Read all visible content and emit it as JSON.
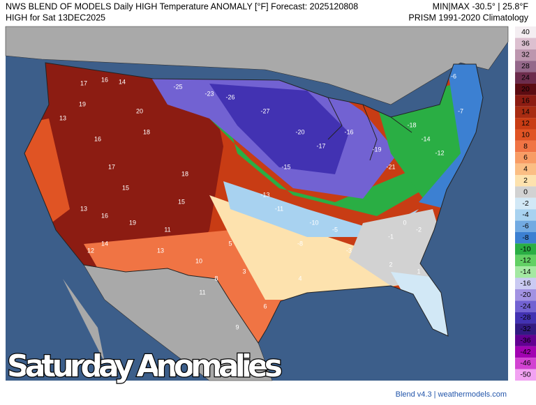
{
  "header": {
    "title": "NWS BLEND OF MODELS Daily HIGH Temperature ANOMALY [°F] Forecast: 2025120808",
    "subtitle": "HIGH for Sat 13DEC2025",
    "minmax": "MIN|MAX -30.5° | 25.8°F",
    "climatology": "PRISM 1991-2020 Climatology"
  },
  "colorbar": {
    "ticks": [
      40,
      36,
      32,
      28,
      24,
      20,
      16,
      14,
      12,
      10,
      8,
      6,
      4,
      2,
      0,
      -2,
      -4,
      -6,
      -8,
      -10,
      -12,
      -14,
      -16,
      -20,
      -24,
      -28,
      -32,
      -36,
      -42,
      -46,
      -50
    ],
    "colors": [
      "#f4eef2",
      "#dcc0d0",
      "#bc96ae",
      "#94688a",
      "#6c2c4c",
      "#5c0c12",
      "#8c1c12",
      "#a82c12",
      "#c83c14",
      "#e05424",
      "#f07444",
      "#f89c64",
      "#fbbe84",
      "#fde2ae",
      "#d2d2d2",
      "#d2e8f6",
      "#a8d2f0",
      "#72aae2",
      "#3c80d2",
      "#2aae44",
      "#62d064",
      "#a4e8a2",
      "#cacaf2",
      "#a292e2",
      "#7262d2",
      "#4232b2",
      "#321a82",
      "#620092",
      "#a202b2",
      "#d242d2",
      "#f2a2f2"
    ]
  },
  "map_labels": [
    17,
    16,
    14,
    19,
    13,
    20,
    18,
    16,
    17,
    15,
    13,
    16,
    19,
    14,
    12,
    11,
    18,
    15,
    13,
    10,
    8,
    5,
    3,
    -25,
    -26,
    -27,
    -23,
    -20,
    -17,
    -15,
    -13,
    -11,
    -10,
    -8,
    -5,
    -3,
    -1,
    2,
    1,
    -16,
    -19,
    -21,
    -18,
    -14,
    -12,
    -7,
    -6,
    -2,
    0,
    4,
    6,
    9,
    11
  ],
  "caption": "Saturday Anomalies",
  "footer": "Blend v4.3 | weathermodels.com"
}
